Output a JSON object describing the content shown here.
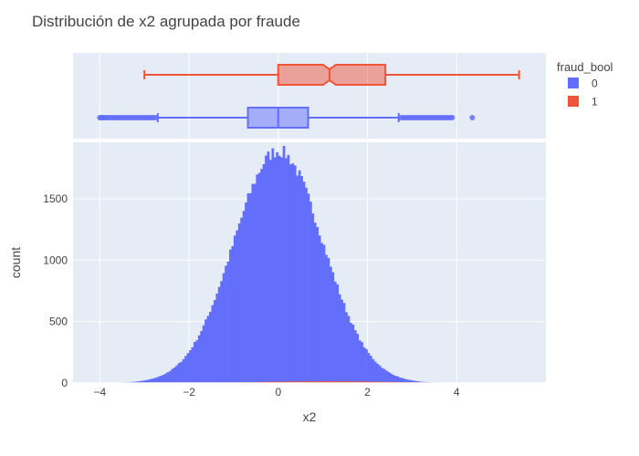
{
  "chart_data": {
    "type": "bar",
    "title": "Distribución de x2 agrupada por fraude",
    "xlabel": "x2",
    "ylabel": "count",
    "xlim": [
      -4.6,
      6.0
    ],
    "ylim": [
      0,
      1960
    ],
    "x_ticks": [
      -4,
      -2,
      0,
      2,
      4
    ],
    "x_tick_labels": [
      "−4",
      "−2",
      "0",
      "2",
      "4"
    ],
    "y_ticks": [
      0,
      500,
      1000,
      1500
    ],
    "y_tick_labels": [
      "0",
      "500",
      "1000",
      "1500"
    ],
    "grid": true,
    "legend": {
      "title": "fraud_bool",
      "placement": "top-right",
      "entries": [
        {
          "label": "0",
          "color": "#636efa"
        },
        {
          "label": "1",
          "color": "#ef553b"
        }
      ]
    },
    "histogram": {
      "bin_width": 0.05,
      "series": [
        {
          "name": "0",
          "color": "#636efa",
          "mean": 0.0,
          "sd": 1.0,
          "peak": 1890,
          "range": [
            -4.0,
            4.4
          ]
        },
        {
          "name": "1",
          "color": "#ef553b",
          "mean": 1.1,
          "sd": 1.5,
          "peak": 14,
          "range": [
            -3.0,
            5.4
          ]
        }
      ]
    },
    "box_marginal": [
      {
        "name": "1",
        "color": "#ef553b",
        "lowerfence": -3.0,
        "q1": 0.0,
        "median": 1.15,
        "q3": 2.4,
        "upperfence": 5.4,
        "notched": true,
        "outliers": []
      },
      {
        "name": "0",
        "color": "#636efa",
        "lowerfence": -2.7,
        "q1": -0.68,
        "median": 0.0,
        "q3": 0.67,
        "upperfence": 2.7,
        "notched": false,
        "outliers": [
          -4.0,
          -3.97,
          -3.94,
          -3.91,
          -3.88,
          -3.85,
          -3.8,
          -3.75,
          -3.7,
          -3.65,
          -3.6,
          -3.55,
          -3.5,
          -3.45,
          -3.4,
          -3.35,
          -3.3,
          -3.25,
          -3.2,
          -3.15,
          -3.1,
          -3.05,
          -3.0,
          -2.95,
          -2.9,
          -2.85,
          -2.8,
          -2.75,
          2.75,
          2.8,
          2.85,
          2.9,
          2.95,
          3.0,
          3.05,
          3.1,
          3.15,
          3.2,
          3.25,
          3.3,
          3.35,
          3.4,
          3.45,
          3.5,
          3.55,
          3.6,
          3.65,
          3.7,
          3.75,
          3.8,
          3.85,
          3.9,
          4.35
        ]
      }
    ]
  }
}
